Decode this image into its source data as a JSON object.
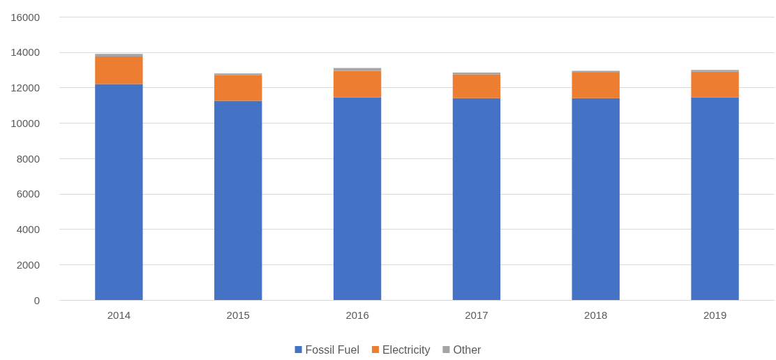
{
  "chart_data": {
    "type": "bar",
    "stacked": true,
    "categories": [
      "2014",
      "2015",
      "2016",
      "2017",
      "2018",
      "2019"
    ],
    "series": [
      {
        "name": "Fossil Fuel",
        "color": "#4472c4",
        "values": [
          12200,
          11250,
          11450,
          11400,
          11400,
          11450
        ]
      },
      {
        "name": "Electricity",
        "color": "#ed7d31",
        "values": [
          1550,
          1450,
          1500,
          1350,
          1450,
          1450
        ]
      },
      {
        "name": "Other",
        "color": "#a5a5a5",
        "values": [
          150,
          100,
          150,
          100,
          100,
          100
        ]
      }
    ],
    "ylim": [
      0,
      16000
    ],
    "yticks": [
      0,
      2000,
      4000,
      6000,
      8000,
      10000,
      12000,
      14000,
      16000
    ],
    "grid": "y",
    "legend": "bottom"
  }
}
